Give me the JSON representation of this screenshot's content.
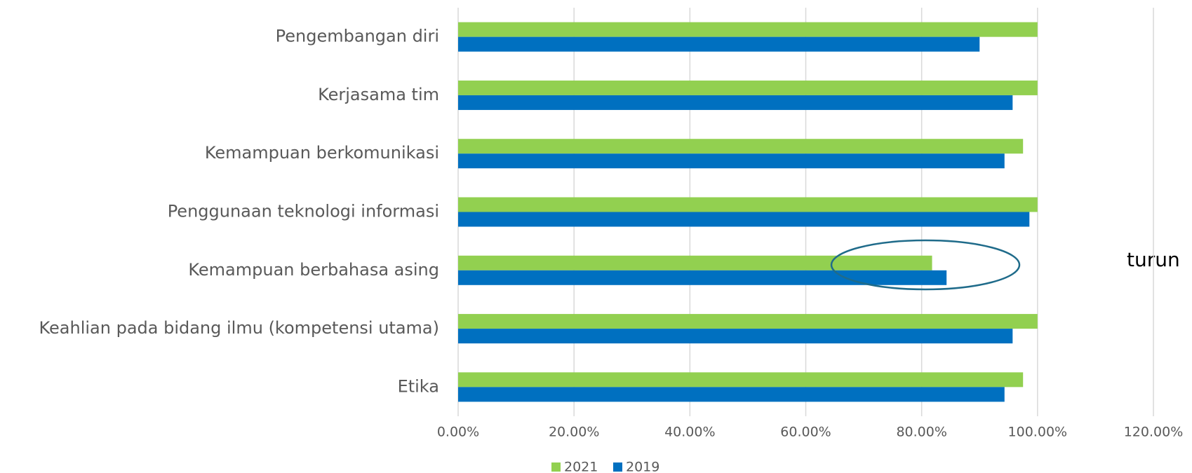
{
  "chart_data": {
    "type": "barh",
    "categories": [
      "Pengembangan diri",
      "Kerjasama tim",
      "Kemampuan berkomunikasi",
      "Penggunaan teknologi informasi",
      "Kemampuan berbahasa asing",
      "Keahlian pada bidang ilmu (kompetensi utama)",
      "Etika"
    ],
    "series": [
      {
        "name": "2021",
        "color": "#92d050",
        "values": [
          100,
          100,
          97.5,
          100,
          81.8,
          100,
          97.5
        ]
      },
      {
        "name": "2019",
        "color": "#0070c0",
        "values": [
          90,
          95.7,
          94.3,
          98.6,
          84.3,
          95.7,
          94.3
        ]
      }
    ],
    "xlim": [
      0,
      120
    ],
    "xticks": [
      {
        "value": 0,
        "label": "0.00%"
      },
      {
        "value": 20,
        "label": "20.00%"
      },
      {
        "value": 40,
        "label": "40.00%"
      },
      {
        "value": 60,
        "label": "60.00%"
      },
      {
        "value": 80,
        "label": "80.00%"
      },
      {
        "value": 100,
        "label": "100.00%"
      },
      {
        "value": 120,
        "label": "120.00%"
      }
    ],
    "grid": true,
    "legend": "bottom",
    "annotation": "turun"
  }
}
